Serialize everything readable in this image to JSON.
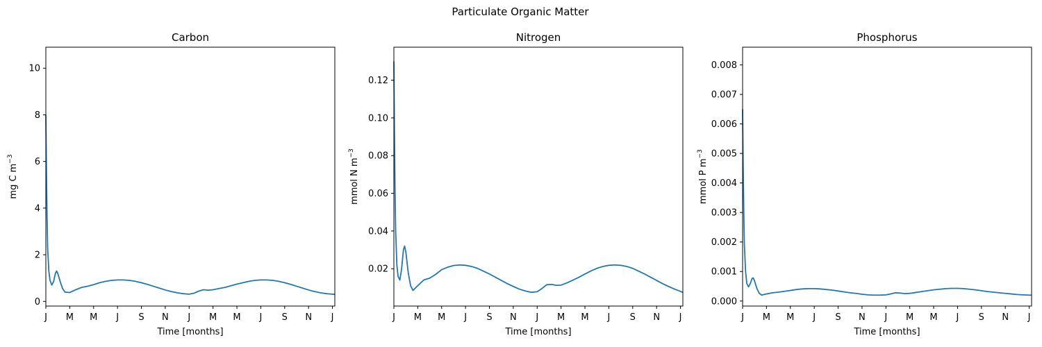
{
  "figure": {
    "suptitle": "Particulate Organic Matter"
  },
  "chart_data": [
    {
      "type": "line",
      "title": "Carbon",
      "xlabel": "Time [months]",
      "ylabel": "mg C m",
      "ylabel_sup": "−3",
      "color": "#1f77b4",
      "x_tick_labels": [
        "J",
        "M",
        "M",
        "J",
        "S",
        "N",
        "J",
        "M",
        "M",
        "J",
        "S",
        "N",
        "J"
      ],
      "x_range_months": [
        0,
        24.2
      ],
      "ylim": [
        -0.2,
        10.9
      ],
      "y_ticks": [
        0,
        2,
        4,
        6,
        8,
        10
      ],
      "y_tick_labels": [
        "0",
        "2",
        "4",
        "6",
        "8",
        "10"
      ],
      "series": [
        {
          "x": [
            0,
            0.05,
            0.1,
            0.15,
            0.25,
            0.35,
            0.5,
            0.65,
            0.8,
            0.9,
            1.0,
            1.2,
            1.4,
            1.6,
            2.0,
            2.5,
            3.0,
            3.5,
            4.0,
            4.5,
            5.0,
            5.5,
            6.0,
            6.5,
            7.0,
            7.5,
            8.0,
            8.5,
            9.0,
            9.5,
            10.0,
            10.5,
            11.0,
            11.5,
            12.0,
            12.4,
            12.8,
            13.2,
            13.6,
            14.0,
            14.5,
            15.0,
            15.5,
            16.0,
            16.5,
            17.0,
            17.5,
            18.0,
            18.5,
            19.0,
            19.5,
            20.0,
            20.5,
            21.0,
            21.5,
            22.0,
            22.5,
            23.0,
            23.5,
            24.0,
            24.2
          ],
          "y": [
            8.0,
            5.5,
            3.6,
            2.3,
            1.3,
            0.9,
            0.7,
            0.85,
            1.2,
            1.3,
            1.2,
            0.85,
            0.55,
            0.4,
            0.38,
            0.5,
            0.6,
            0.65,
            0.72,
            0.8,
            0.86,
            0.9,
            0.92,
            0.92,
            0.9,
            0.86,
            0.8,
            0.73,
            0.65,
            0.57,
            0.49,
            0.42,
            0.37,
            0.33,
            0.31,
            0.35,
            0.44,
            0.5,
            0.48,
            0.5,
            0.55,
            0.6,
            0.67,
            0.74,
            0.8,
            0.86,
            0.9,
            0.92,
            0.92,
            0.9,
            0.86,
            0.8,
            0.73,
            0.65,
            0.57,
            0.49,
            0.42,
            0.37,
            0.33,
            0.31,
            0.3
          ]
        }
      ]
    },
    {
      "type": "line",
      "title": "Nitrogen",
      "xlabel": "Time [months]",
      "ylabel": "mmol N m",
      "ylabel_sup": "−3",
      "color": "#1f77b4",
      "x_tick_labels": [
        "J",
        "M",
        "M",
        "J",
        "S",
        "N",
        "J",
        "M",
        "M",
        "J",
        "S",
        "N",
        "J"
      ],
      "x_range_months": [
        0,
        24.2
      ],
      "ylim": [
        0.0002,
        0.1375
      ],
      "y_ticks": [
        0.02,
        0.04,
        0.06,
        0.08,
        0.1,
        0.12
      ],
      "y_tick_labels": [
        "0.02",
        "0.04",
        "0.06",
        "0.08",
        "0.10",
        "0.12"
      ],
      "series": [
        {
          "x": [
            0,
            0.05,
            0.1,
            0.15,
            0.25,
            0.35,
            0.5,
            0.65,
            0.8,
            0.9,
            1.0,
            1.2,
            1.4,
            1.6,
            2.0,
            2.5,
            3.0,
            3.5,
            4.0,
            4.5,
            5.0,
            5.5,
            6.0,
            6.5,
            7.0,
            7.5,
            8.0,
            8.5,
            9.0,
            9.5,
            10.0,
            10.5,
            11.0,
            11.5,
            12.0,
            12.4,
            12.8,
            13.2,
            13.6,
            14.0,
            14.5,
            15.0,
            15.5,
            16.0,
            16.5,
            17.0,
            17.5,
            18.0,
            18.5,
            19.0,
            19.5,
            20.0,
            20.5,
            21.0,
            21.5,
            22.0,
            22.5,
            23.0,
            23.5,
            24.0,
            24.2
          ],
          "y": [
            0.13,
            0.09,
            0.06,
            0.04,
            0.022,
            0.016,
            0.014,
            0.02,
            0.03,
            0.032,
            0.029,
            0.018,
            0.011,
            0.0085,
            0.011,
            0.014,
            0.015,
            0.017,
            0.0195,
            0.0208,
            0.0217,
            0.022,
            0.0218,
            0.0212,
            0.0202,
            0.0187,
            0.0172,
            0.0155,
            0.0138,
            0.0121,
            0.0106,
            0.0092,
            0.0082,
            0.0075,
            0.0078,
            0.0095,
            0.0115,
            0.0117,
            0.0112,
            0.0113,
            0.0125,
            0.014,
            0.0155,
            0.0172,
            0.0188,
            0.0202,
            0.0212,
            0.0218,
            0.022,
            0.0218,
            0.0212,
            0.0202,
            0.0187,
            0.0172,
            0.0155,
            0.0138,
            0.0121,
            0.0106,
            0.0092,
            0.008,
            0.0074
          ]
        }
      ]
    },
    {
      "type": "line",
      "title": "Phosphorus",
      "xlabel": "Time [months]",
      "ylabel": "mmol P m",
      "ylabel_sup": "−3",
      "color": "#1f77b4",
      "x_tick_labels": [
        "J",
        "M",
        "M",
        "J",
        "S",
        "N",
        "J",
        "M",
        "M",
        "J",
        "S",
        "N",
        "J"
      ],
      "x_range_months": [
        0,
        24.2
      ],
      "ylim": [
        -0.00017,
        0.0086
      ],
      "y_ticks": [
        0,
        0.001,
        0.002,
        0.003,
        0.004,
        0.005,
        0.006,
        0.007,
        0.008
      ],
      "y_tick_labels": [
        "0.000",
        "0.001",
        "0.002",
        "0.003",
        "0.004",
        "0.005",
        "0.006",
        "0.007",
        "0.008"
      ],
      "series": [
        {
          "x": [
            0,
            0.05,
            0.1,
            0.15,
            0.25,
            0.35,
            0.5,
            0.65,
            0.8,
            0.9,
            1.0,
            1.2,
            1.4,
            1.6,
            2.0,
            2.5,
            3.0,
            3.5,
            4.0,
            4.5,
            5.0,
            5.5,
            6.0,
            6.5,
            7.0,
            7.5,
            8.0,
            8.5,
            9.0,
            9.5,
            10.0,
            10.5,
            11.0,
            11.5,
            12.0,
            12.4,
            12.8,
            13.2,
            13.6,
            14.0,
            14.5,
            15.0,
            15.5,
            16.0,
            16.5,
            17.0,
            17.5,
            18.0,
            18.5,
            19.0,
            19.5,
            20.0,
            20.5,
            21.0,
            21.5,
            22.0,
            22.5,
            23.0,
            23.5,
            24.0,
            24.2
          ],
          "y": [
            0.0065,
            0.0045,
            0.003,
            0.0019,
            0.001,
            0.0006,
            0.00048,
            0.0006,
            0.00077,
            0.00078,
            0.00068,
            0.00042,
            0.00026,
            0.0002,
            0.00024,
            0.00028,
            0.0003,
            0.00033,
            0.00036,
            0.00039,
            0.00041,
            0.00042,
            0.00042,
            0.00041,
            0.00039,
            0.00037,
            0.00034,
            0.00031,
            0.00028,
            0.00026,
            0.00023,
            0.00021,
            0.0002,
            0.0002,
            0.00021,
            0.00024,
            0.00028,
            0.00027,
            0.00025,
            0.00026,
            0.00029,
            0.00032,
            0.00035,
            0.00038,
            0.0004,
            0.00042,
            0.00043,
            0.00043,
            0.00042,
            0.0004,
            0.00038,
            0.00035,
            0.00032,
            0.0003,
            0.00028,
            0.00026,
            0.00024,
            0.00022,
            0.00021,
            0.0002,
            0.0002
          ]
        }
      ]
    }
  ]
}
